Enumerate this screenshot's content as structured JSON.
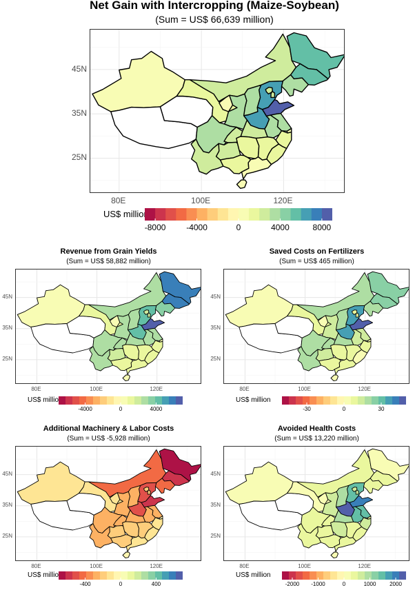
{
  "chart_data": [
    {
      "type": "choropleth-map",
      "title": "Net Gain with Intercropping (Maize-Soybean)",
      "subtitle": "(Sum = US$ 66,639 million)",
      "x_ticks": [
        "80E",
        "100E",
        "120E"
      ],
      "y_ticks": [
        "45N",
        "35N",
        "25N"
      ],
      "x_range": [
        73,
        135
      ],
      "y_range": [
        17,
        54
      ],
      "legend": {
        "title": "US$ million",
        "labels": [
          "-8000",
          "-4000",
          "0",
          "4000",
          "8000"
        ],
        "label_values": [
          -8000,
          -4000,
          0,
          4000,
          8000
        ],
        "range": [
          -9000,
          9000
        ],
        "placement": "bottom"
      },
      "regions": [
        {
          "name": "Xinjiang",
          "value": 500
        },
        {
          "name": "Tibet",
          "value": null
        },
        {
          "name": "Qinghai",
          "value": null
        },
        {
          "name": "Gansu",
          "value": 1200
        },
        {
          "name": "Inner Mongolia",
          "value": 2500
        },
        {
          "name": "Heilongjiang",
          "value": 5000
        },
        {
          "name": "Jilin",
          "value": 5000
        },
        {
          "name": "Liaoning",
          "value": 3500
        },
        {
          "name": "Hebei",
          "value": 6000
        },
        {
          "name": "Beijing",
          "value": 2000
        },
        {
          "name": "Tianjin",
          "value": 2000
        },
        {
          "name": "Shanxi",
          "value": 3000
        },
        {
          "name": "Shandong",
          "value": 8500
        },
        {
          "name": "Henan",
          "value": 6500
        },
        {
          "name": "Shaanxi",
          "value": 3000
        },
        {
          "name": "Ningxia",
          "value": 500
        },
        {
          "name": "Sichuan",
          "value": 3000
        },
        {
          "name": "Chongqing",
          "value": 2500
        },
        {
          "name": "Hubei",
          "value": 2500
        },
        {
          "name": "Anhui",
          "value": 3500
        },
        {
          "name": "Jiangsu",
          "value": 3000
        },
        {
          "name": "Zhejiang",
          "value": 1500
        },
        {
          "name": "Shanghai",
          "value": 500
        },
        {
          "name": "Yunnan",
          "value": 2500
        },
        {
          "name": "Guizhou",
          "value": 2000
        },
        {
          "name": "Guangxi",
          "value": 1200
        },
        {
          "name": "Guangdong",
          "value": 800
        },
        {
          "name": "Hunan",
          "value": 1500
        },
        {
          "name": "Jiangxi",
          "value": 1500
        },
        {
          "name": "Fujian",
          "value": 1000
        },
        {
          "name": "Hainan",
          "value": 500
        }
      ]
    },
    {
      "type": "choropleth-map",
      "title": "Revenue from Grain Yields",
      "subtitle": "(Sum = US$ 58,882 million)",
      "x_ticks": [
        "80E",
        "100E",
        "120E"
      ],
      "y_ticks": [
        "45N",
        "35N",
        "25N"
      ],
      "x_range": [
        73,
        135
      ],
      "y_range": [
        17,
        54
      ],
      "legend": {
        "title": "US$ million",
        "labels": [
          "-4000",
          "0",
          "4000"
        ],
        "label_values": [
          -4000,
          0,
          4000
        ],
        "range": [
          -7000,
          7000
        ],
        "placement": "bottom"
      },
      "regions": [
        {
          "name": "Xinjiang",
          "value": 500
        },
        {
          "name": "Tibet",
          "value": null
        },
        {
          "name": "Qinghai",
          "value": null
        },
        {
          "name": "Gansu",
          "value": 1000
        },
        {
          "name": "Inner Mongolia",
          "value": 2800
        },
        {
          "name": "Heilongjiang",
          "value": 5500
        },
        {
          "name": "Jilin",
          "value": 5500
        },
        {
          "name": "Liaoning",
          "value": 3500
        },
        {
          "name": "Hebei",
          "value": 4500
        },
        {
          "name": "Beijing",
          "value": 2000
        },
        {
          "name": "Tianjin",
          "value": 2000
        },
        {
          "name": "Shanxi",
          "value": 3000
        },
        {
          "name": "Shandong",
          "value": 6500
        },
        {
          "name": "Henan",
          "value": 4500
        },
        {
          "name": "Shaanxi",
          "value": 3000
        },
        {
          "name": "Ningxia",
          "value": 500
        },
        {
          "name": "Sichuan",
          "value": 3000
        },
        {
          "name": "Chongqing",
          "value": 2500
        },
        {
          "name": "Hubei",
          "value": 2500
        },
        {
          "name": "Anhui",
          "value": 2500
        },
        {
          "name": "Jiangsu",
          "value": 2500
        },
        {
          "name": "Zhejiang",
          "value": 1500
        },
        {
          "name": "Shanghai",
          "value": 500
        },
        {
          "name": "Yunnan",
          "value": 2500
        },
        {
          "name": "Guizhou",
          "value": 2000
        },
        {
          "name": "Guangxi",
          "value": 1500
        },
        {
          "name": "Guangdong",
          "value": 1000
        },
        {
          "name": "Hunan",
          "value": 1500
        },
        {
          "name": "Jiangxi",
          "value": 1500
        },
        {
          "name": "Fujian",
          "value": 1000
        },
        {
          "name": "Hainan",
          "value": 500
        }
      ]
    },
    {
      "type": "choropleth-map",
      "title": "Saved Costs on Fertilizers",
      "subtitle": "(Sum = US$ 465 million)",
      "x_ticks": [
        "80E",
        "100E",
        "120E"
      ],
      "y_ticks": [
        "45N",
        "35N",
        "25N"
      ],
      "x_range": [
        73,
        135
      ],
      "y_range": [
        17,
        54
      ],
      "legend": {
        "title": "US$ million",
        "labels": [
          "-30",
          "0",
          "30"
        ],
        "label_values": [
          -30,
          0,
          30
        ],
        "range": [
          -50,
          50
        ],
        "placement": "bottom"
      },
      "regions": [
        {
          "name": "Xinjiang",
          "value": 5
        },
        {
          "name": "Tibet",
          "value": null
        },
        {
          "name": "Qinghai",
          "value": null
        },
        {
          "name": "Gansu",
          "value": 8
        },
        {
          "name": "Inner Mongolia",
          "value": 20
        },
        {
          "name": "Heilongjiang",
          "value": 25
        },
        {
          "name": "Jilin",
          "value": 25
        },
        {
          "name": "Liaoning",
          "value": 20
        },
        {
          "name": "Hebei",
          "value": 38
        },
        {
          "name": "Beijing",
          "value": 10
        },
        {
          "name": "Tianjin",
          "value": 10
        },
        {
          "name": "Shanxi",
          "value": 20
        },
        {
          "name": "Shandong",
          "value": 45
        },
        {
          "name": "Henan",
          "value": 38
        },
        {
          "name": "Shaanxi",
          "value": 15
        },
        {
          "name": "Ningxia",
          "value": 5
        },
        {
          "name": "Sichuan",
          "value": 22
        },
        {
          "name": "Chongqing",
          "value": 20
        },
        {
          "name": "Hubei",
          "value": 20
        },
        {
          "name": "Anhui",
          "value": 15
        },
        {
          "name": "Jiangsu",
          "value": 15
        },
        {
          "name": "Zhejiang",
          "value": 10
        },
        {
          "name": "Shanghai",
          "value": 5
        },
        {
          "name": "Yunnan",
          "value": 20
        },
        {
          "name": "Guizhou",
          "value": 15
        },
        {
          "name": "Guangxi",
          "value": 10
        },
        {
          "name": "Guangdong",
          "value": 8
        },
        {
          "name": "Hunan",
          "value": 10
        },
        {
          "name": "Jiangxi",
          "value": 10
        },
        {
          "name": "Fujian",
          "value": 5
        },
        {
          "name": "Hainan",
          "value": 3
        }
      ]
    },
    {
      "type": "choropleth-map",
      "title": "Additional Machinery & Labor Costs",
      "subtitle": "(Sum = US$ -5,928 million)",
      "x_ticks": [
        "80E",
        "100E",
        "120E"
      ],
      "y_ticks": [
        "45N",
        "35N",
        "25N"
      ],
      "x_range": [
        73,
        135
      ],
      "y_range": [
        17,
        54
      ],
      "legend": {
        "title": "US$ million",
        "labels": [
          "-400",
          "0",
          "400"
        ],
        "label_values": [
          -400,
          0,
          400
        ],
        "range": [
          -700,
          700
        ],
        "placement": "bottom"
      },
      "regions": [
        {
          "name": "Xinjiang",
          "value": -100
        },
        {
          "name": "Tibet",
          "value": null
        },
        {
          "name": "Qinghai",
          "value": null
        },
        {
          "name": "Gansu",
          "value": -150
        },
        {
          "name": "Inner Mongolia",
          "value": -400
        },
        {
          "name": "Heilongjiang",
          "value": -650
        },
        {
          "name": "Jilin",
          "value": -600
        },
        {
          "name": "Liaoning",
          "value": -400
        },
        {
          "name": "Hebei",
          "value": -500
        },
        {
          "name": "Beijing",
          "value": -200
        },
        {
          "name": "Tianjin",
          "value": -200
        },
        {
          "name": "Shanxi",
          "value": -300
        },
        {
          "name": "Shandong",
          "value": -550
        },
        {
          "name": "Henan",
          "value": -500
        },
        {
          "name": "Shaanxi",
          "value": -300
        },
        {
          "name": "Ningxia",
          "value": -100
        },
        {
          "name": "Sichuan",
          "value": -300
        },
        {
          "name": "Chongqing",
          "value": -250
        },
        {
          "name": "Hubei",
          "value": -250
        },
        {
          "name": "Anhui",
          "value": -300
        },
        {
          "name": "Jiangsu",
          "value": -250
        },
        {
          "name": "Zhejiang",
          "value": -150
        },
        {
          "name": "Shanghai",
          "value": -50
        },
        {
          "name": "Yunnan",
          "value": -250
        },
        {
          "name": "Guizhou",
          "value": -200
        },
        {
          "name": "Guangxi",
          "value": -200
        },
        {
          "name": "Guangdong",
          "value": -150
        },
        {
          "name": "Hunan",
          "value": -200
        },
        {
          "name": "Jiangxi",
          "value": -200
        },
        {
          "name": "Fujian",
          "value": -100
        },
        {
          "name": "Hainan",
          "value": -50
        }
      ]
    },
    {
      "type": "choropleth-map",
      "title": "Avoided Health Costs",
      "subtitle": "(Sum = US$ 13,220 million)",
      "x_ticks": [
        "80E",
        "100E",
        "120E"
      ],
      "y_ticks": [
        "45N",
        "35N",
        "25N"
      ],
      "x_range": [
        73,
        135
      ],
      "y_range": [
        17,
        54
      ],
      "legend": {
        "title": "US$ million",
        "labels": [
          "-2000",
          "-1000",
          "0",
          "1000",
          "2000"
        ],
        "label_values": [
          -2000,
          -1000,
          0,
          1000,
          2000
        ],
        "range": [
          -2400,
          2400
        ],
        "placement": "bottom"
      },
      "regions": [
        {
          "name": "Xinjiang",
          "value": 100
        },
        {
          "name": "Tibet",
          "value": null
        },
        {
          "name": "Qinghai",
          "value": null
        },
        {
          "name": "Gansu",
          "value": 200
        },
        {
          "name": "Inner Mongolia",
          "value": 300
        },
        {
          "name": "Heilongjiang",
          "value": 200
        },
        {
          "name": "Jilin",
          "value": 300
        },
        {
          "name": "Liaoning",
          "value": 500
        },
        {
          "name": "Hebei",
          "value": 1500
        },
        {
          "name": "Beijing",
          "value": 600
        },
        {
          "name": "Tianjin",
          "value": 600
        },
        {
          "name": "Shanxi",
          "value": 800
        },
        {
          "name": "Shandong",
          "value": 2000
        },
        {
          "name": "Henan",
          "value": 2200
        },
        {
          "name": "Shaanxi",
          "value": 600
        },
        {
          "name": "Ningxia",
          "value": 100
        },
        {
          "name": "Sichuan",
          "value": 500
        },
        {
          "name": "Chongqing",
          "value": 500
        },
        {
          "name": "Hubei",
          "value": 1000
        },
        {
          "name": "Anhui",
          "value": 1500
        },
        {
          "name": "Jiangsu",
          "value": 1600
        },
        {
          "name": "Zhejiang",
          "value": 600
        },
        {
          "name": "Shanghai",
          "value": 300
        },
        {
          "name": "Yunnan",
          "value": 300
        },
        {
          "name": "Guizhou",
          "value": 300
        },
        {
          "name": "Guangxi",
          "value": 300
        },
        {
          "name": "Guangdong",
          "value": 400
        },
        {
          "name": "Hunan",
          "value": 600
        },
        {
          "name": "Jiangxi",
          "value": 500
        },
        {
          "name": "Fujian",
          "value": 300
        },
        {
          "name": "Hainan",
          "value": 100
        }
      ]
    }
  ]
}
